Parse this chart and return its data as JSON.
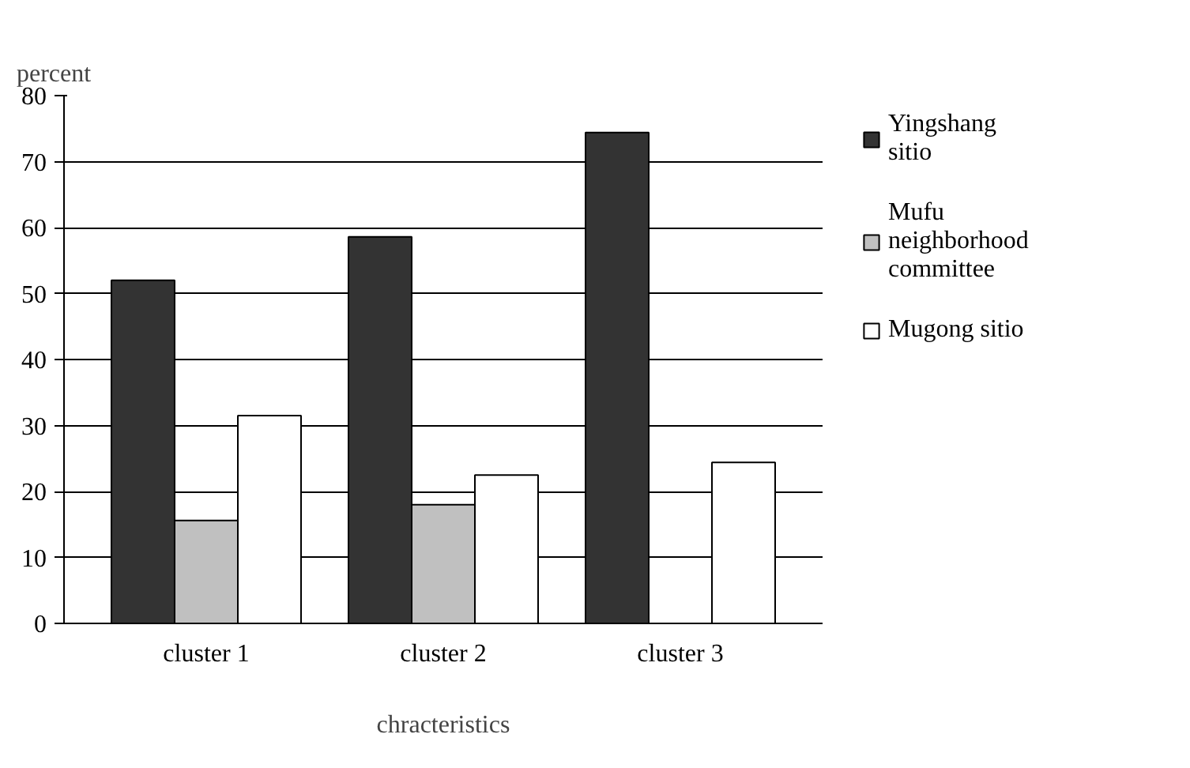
{
  "chart_data": {
    "type": "bar",
    "xlabel": "chracteristics",
    "ylabel": "percent",
    "categories": [
      "cluster 1",
      "cluster 2",
      "cluster 3"
    ],
    "series": [
      {
        "name": "Yingshang sitio",
        "color": "#333333",
        "values": [
          52,
          58.6,
          74.4
        ]
      },
      {
        "name": "Mufu neighborhood committee",
        "color": "#c0c0c0",
        "values": [
          15.6,
          18,
          0
        ]
      },
      {
        "name": "Mugong sitio",
        "color": "#ffffff",
        "values": [
          31.5,
          22.5,
          24.4
        ]
      }
    ],
    "ylim": [
      0,
      80
    ],
    "yticks": [
      0,
      10,
      20,
      30,
      40,
      50,
      60,
      70,
      80
    ],
    "grid": "y",
    "legend": "right"
  }
}
